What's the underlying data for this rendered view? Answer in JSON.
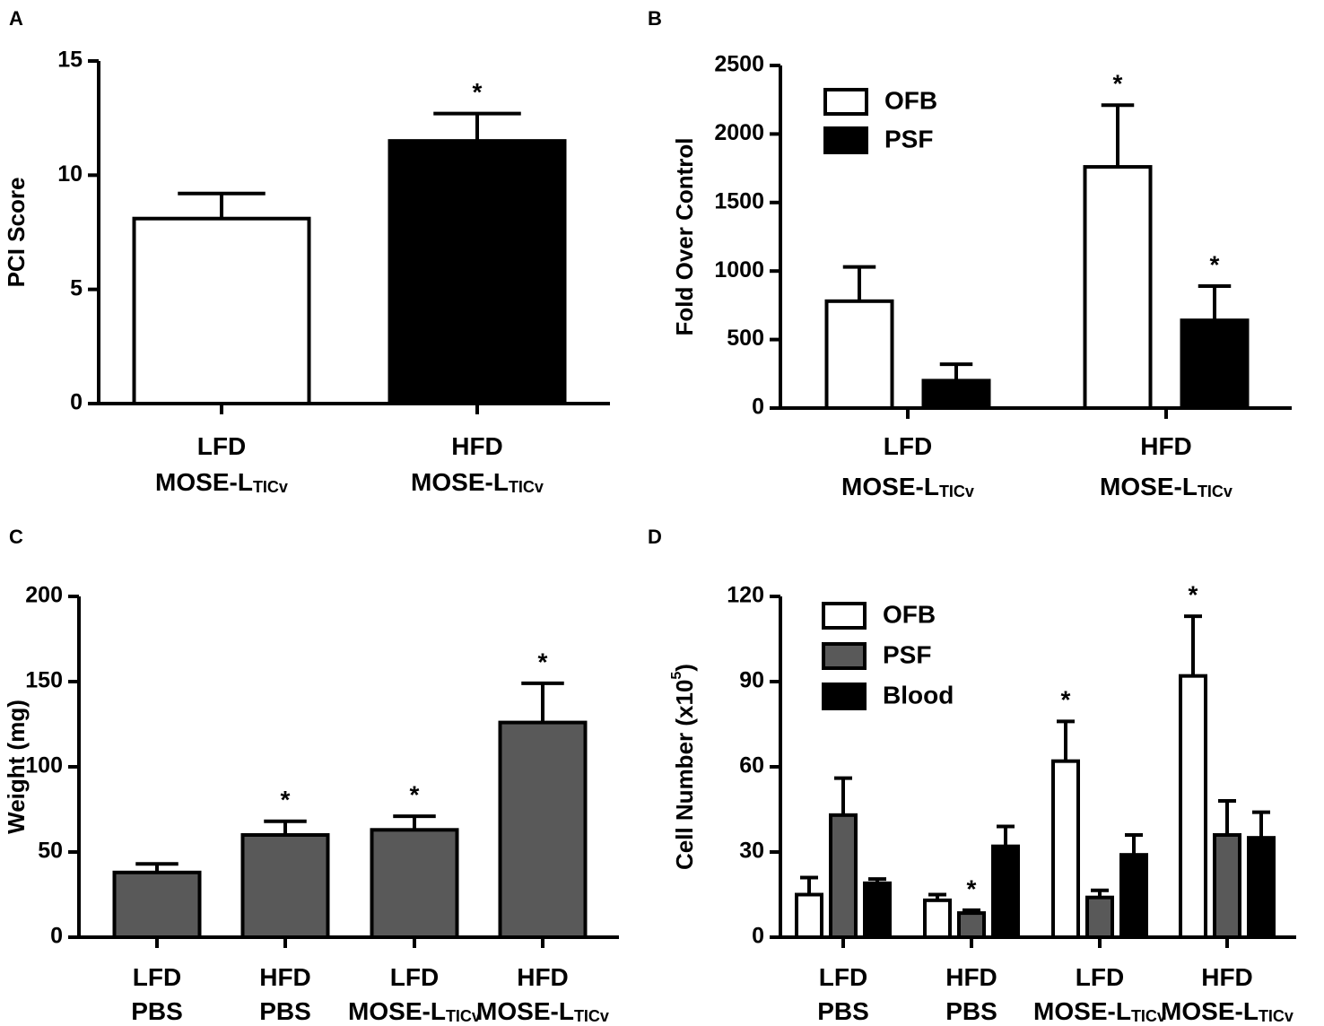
{
  "chart_data": [
    {
      "type": "bar",
      "panel": "A",
      "ylabel": [
        "PCI Score"
      ],
      "categories": [
        [
          "LFD",
          [
            "MOSE-L",
            "TICv"
          ]
        ],
        [
          "HFD",
          [
            "MOSE-L",
            "TICv"
          ]
        ]
      ],
      "series": [
        {
          "colors": [
            "#ffffff",
            "#000000"
          ],
          "values": [
            8.1,
            11.5
          ],
          "errors": [
            1.1,
            1.2
          ],
          "significance": [
            null,
            "*"
          ]
        }
      ],
      "ylim": [
        0,
        15
      ],
      "yticks": [
        0,
        5,
        10,
        15
      ]
    },
    {
      "type": "bar",
      "panel": "B",
      "ylabel": [
        "Fold Over Control"
      ],
      "categories": [
        [
          "LFD",
          [
            "MOSE-L",
            "TICv"
          ]
        ],
        [
          "HFD",
          [
            "MOSE-L",
            "TICv"
          ]
        ]
      ],
      "series": [
        {
          "name": "OFB",
          "color": "#ffffff",
          "values": [
            780,
            1760
          ],
          "errors": [
            250,
            450
          ],
          "significance": [
            null,
            "*"
          ]
        },
        {
          "name": "PSF",
          "color": "#000000",
          "values": [
            200,
            640
          ],
          "errors": [
            120,
            250
          ],
          "significance": [
            null,
            "*"
          ]
        }
      ],
      "ylim": [
        0,
        2500
      ],
      "yticks": [
        0,
        500,
        1000,
        1500,
        2000,
        2500
      ]
    },
    {
      "type": "bar",
      "panel": "C",
      "ylabel": [
        "Weight (mg)"
      ],
      "categories": [
        [
          "LFD",
          "PBS"
        ],
        [
          "HFD",
          "PBS"
        ],
        [
          "LFD",
          [
            "MOSE-L",
            "TICv"
          ]
        ],
        [
          "HFD",
          [
            "MOSE-L",
            "TICv"
          ]
        ]
      ],
      "series": [
        {
          "color": "#595959",
          "values": [
            38,
            60,
            63,
            126
          ],
          "errors": [
            5,
            8,
            8,
            23
          ],
          "significance": [
            null,
            "*",
            "*",
            "*"
          ]
        }
      ],
      "ylim": [
        0,
        200
      ],
      "yticks": [
        0,
        50,
        100,
        150,
        200
      ]
    },
    {
      "type": "bar",
      "panel": "D",
      "ylabel": [
        "Cell Number (x10",
        "5",
        ")"
      ],
      "categories": [
        [
          "LFD",
          "PBS"
        ],
        [
          "HFD",
          "PBS"
        ],
        [
          "LFD",
          [
            "MOSE-L",
            "TICv"
          ]
        ],
        [
          "HFD",
          [
            "MOSE-L",
            "TICv"
          ]
        ]
      ],
      "series": [
        {
          "name": "OFB",
          "color": "#ffffff",
          "values": [
            15,
            13,
            62,
            92
          ],
          "errors": [
            6,
            2,
            14,
            21
          ],
          "significance": [
            null,
            null,
            "*",
            "*"
          ]
        },
        {
          "name": "PSF",
          "color": "#595959",
          "values": [
            43,
            8.5,
            14,
            36
          ],
          "errors": [
            13,
            1,
            2.5,
            12
          ],
          "significance": [
            null,
            "*",
            null,
            null
          ]
        },
        {
          "name": "Blood",
          "color": "#000000",
          "values": [
            19,
            32,
            29,
            35
          ],
          "errors": [
            1.5,
            7,
            7,
            9
          ],
          "significance": [
            null,
            null,
            null,
            null
          ]
        }
      ],
      "ylim": [
        0,
        120
      ],
      "yticks": [
        0,
        30,
        60,
        90,
        120
      ]
    }
  ]
}
